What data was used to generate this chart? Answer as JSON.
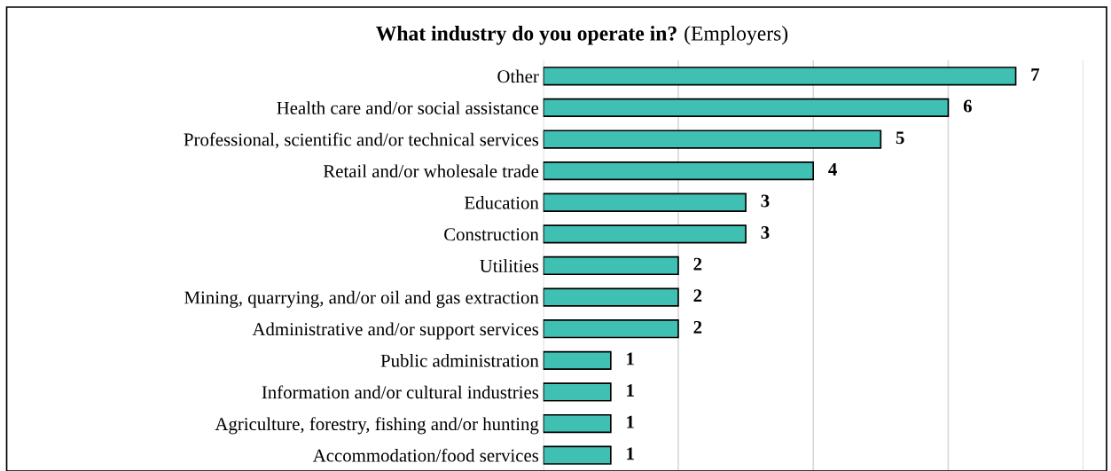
{
  "chart_data": {
    "type": "bar",
    "orientation": "horizontal",
    "title": "What industry do you operate in?",
    "subtitle": "(Employers)",
    "categories": [
      "Other",
      "Health care and/or social assistance",
      "Professional, scientific and/or technical services",
      "Retail and/or wholesale trade",
      "Education",
      "Construction",
      "Utilities",
      "Mining, quarrying, and/or oil and gas extraction",
      "Administrative and/or support services",
      "Public administration",
      "Information and/or cultural industries",
      "Agriculture, forestry, fishing and/or hunting",
      "Accommodation/food services"
    ],
    "values": [
      7,
      6,
      5,
      4,
      3,
      3,
      2,
      2,
      2,
      1,
      1,
      1,
      1
    ],
    "color": "#40bfb3",
    "xlim": [
      0,
      8
    ],
    "xticks": [
      {
        "value": 0,
        "label": null
      },
      {
        "value": 2,
        "label": null
      },
      {
        "value": 4,
        "label": null
      },
      {
        "value": 6,
        "label": null
      },
      {
        "value": 8,
        "label": null
      }
    ],
    "tick_labels": "y",
    "grid": "x",
    "data_labels": true,
    "legend": false
  }
}
